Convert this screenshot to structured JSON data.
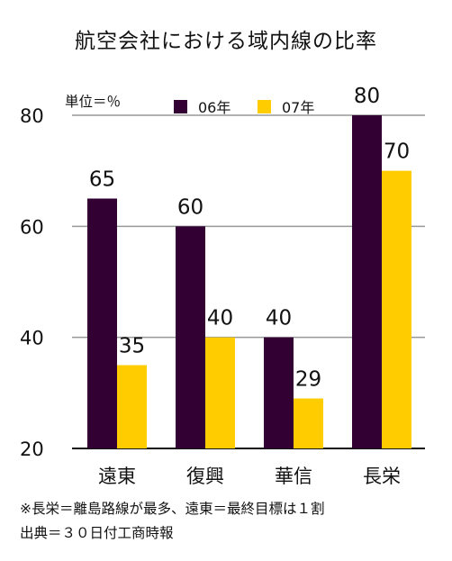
{
  "title": "航空会社における域内線の比率",
  "unit_label": "単位＝％",
  "footnotes": [
    "※長栄＝離島路線が最多、遠東＝最終目標は１割",
    "出典＝３０日付工商時報"
  ],
  "colors": {
    "series_06": "#330033",
    "series_07": "#ffcc00",
    "grid": "#999999",
    "axis": "#111111"
  },
  "chart_data": {
    "type": "bar",
    "categories": [
      "遠東",
      "復興",
      "華信",
      "長栄"
    ],
    "series": [
      {
        "name": "06年",
        "values": [
          65,
          60,
          40,
          80
        ],
        "labels": [
          "65",
          "60",
          "40",
          "80"
        ]
      },
      {
        "name": "07年",
        "values": [
          35,
          40,
          29,
          70
        ],
        "labels": [
          "35",
          "40",
          "29",
          "70"
        ]
      }
    ],
    "ylim": [
      20,
      80
    ],
    "yticks": [
      20,
      40,
      60,
      80
    ],
    "ytick_labels": [
      "20",
      "40",
      "60",
      "80"
    ],
    "grid": true,
    "legend_position": "top"
  }
}
